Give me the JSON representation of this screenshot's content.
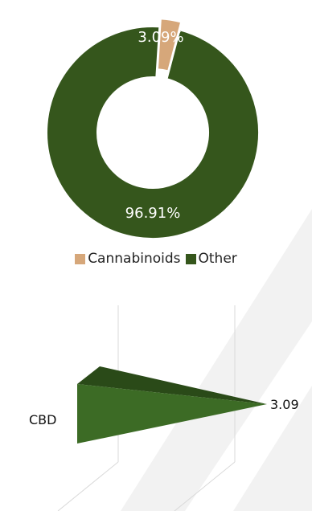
{
  "chart_data": [
    {
      "type": "pie",
      "style": "donut",
      "categories": [
        "Cannabinoids",
        "Other"
      ],
      "values": [
        3.09,
        96.91
      ],
      "data_labels": [
        "3.09%",
        "96.91%"
      ],
      "colors": [
        "#d6a77a",
        "#35561c"
      ],
      "exploded": "Cannabinoids",
      "legend_position": "bottom"
    },
    {
      "type": "bar",
      "orientation": "horizontal",
      "style": "3d-cone",
      "categories": [
        "CBD"
      ],
      "values": [
        3.09
      ],
      "data_labels": [
        "3.09"
      ],
      "colors": [
        "#3c6b25"
      ]
    }
  ]
}
